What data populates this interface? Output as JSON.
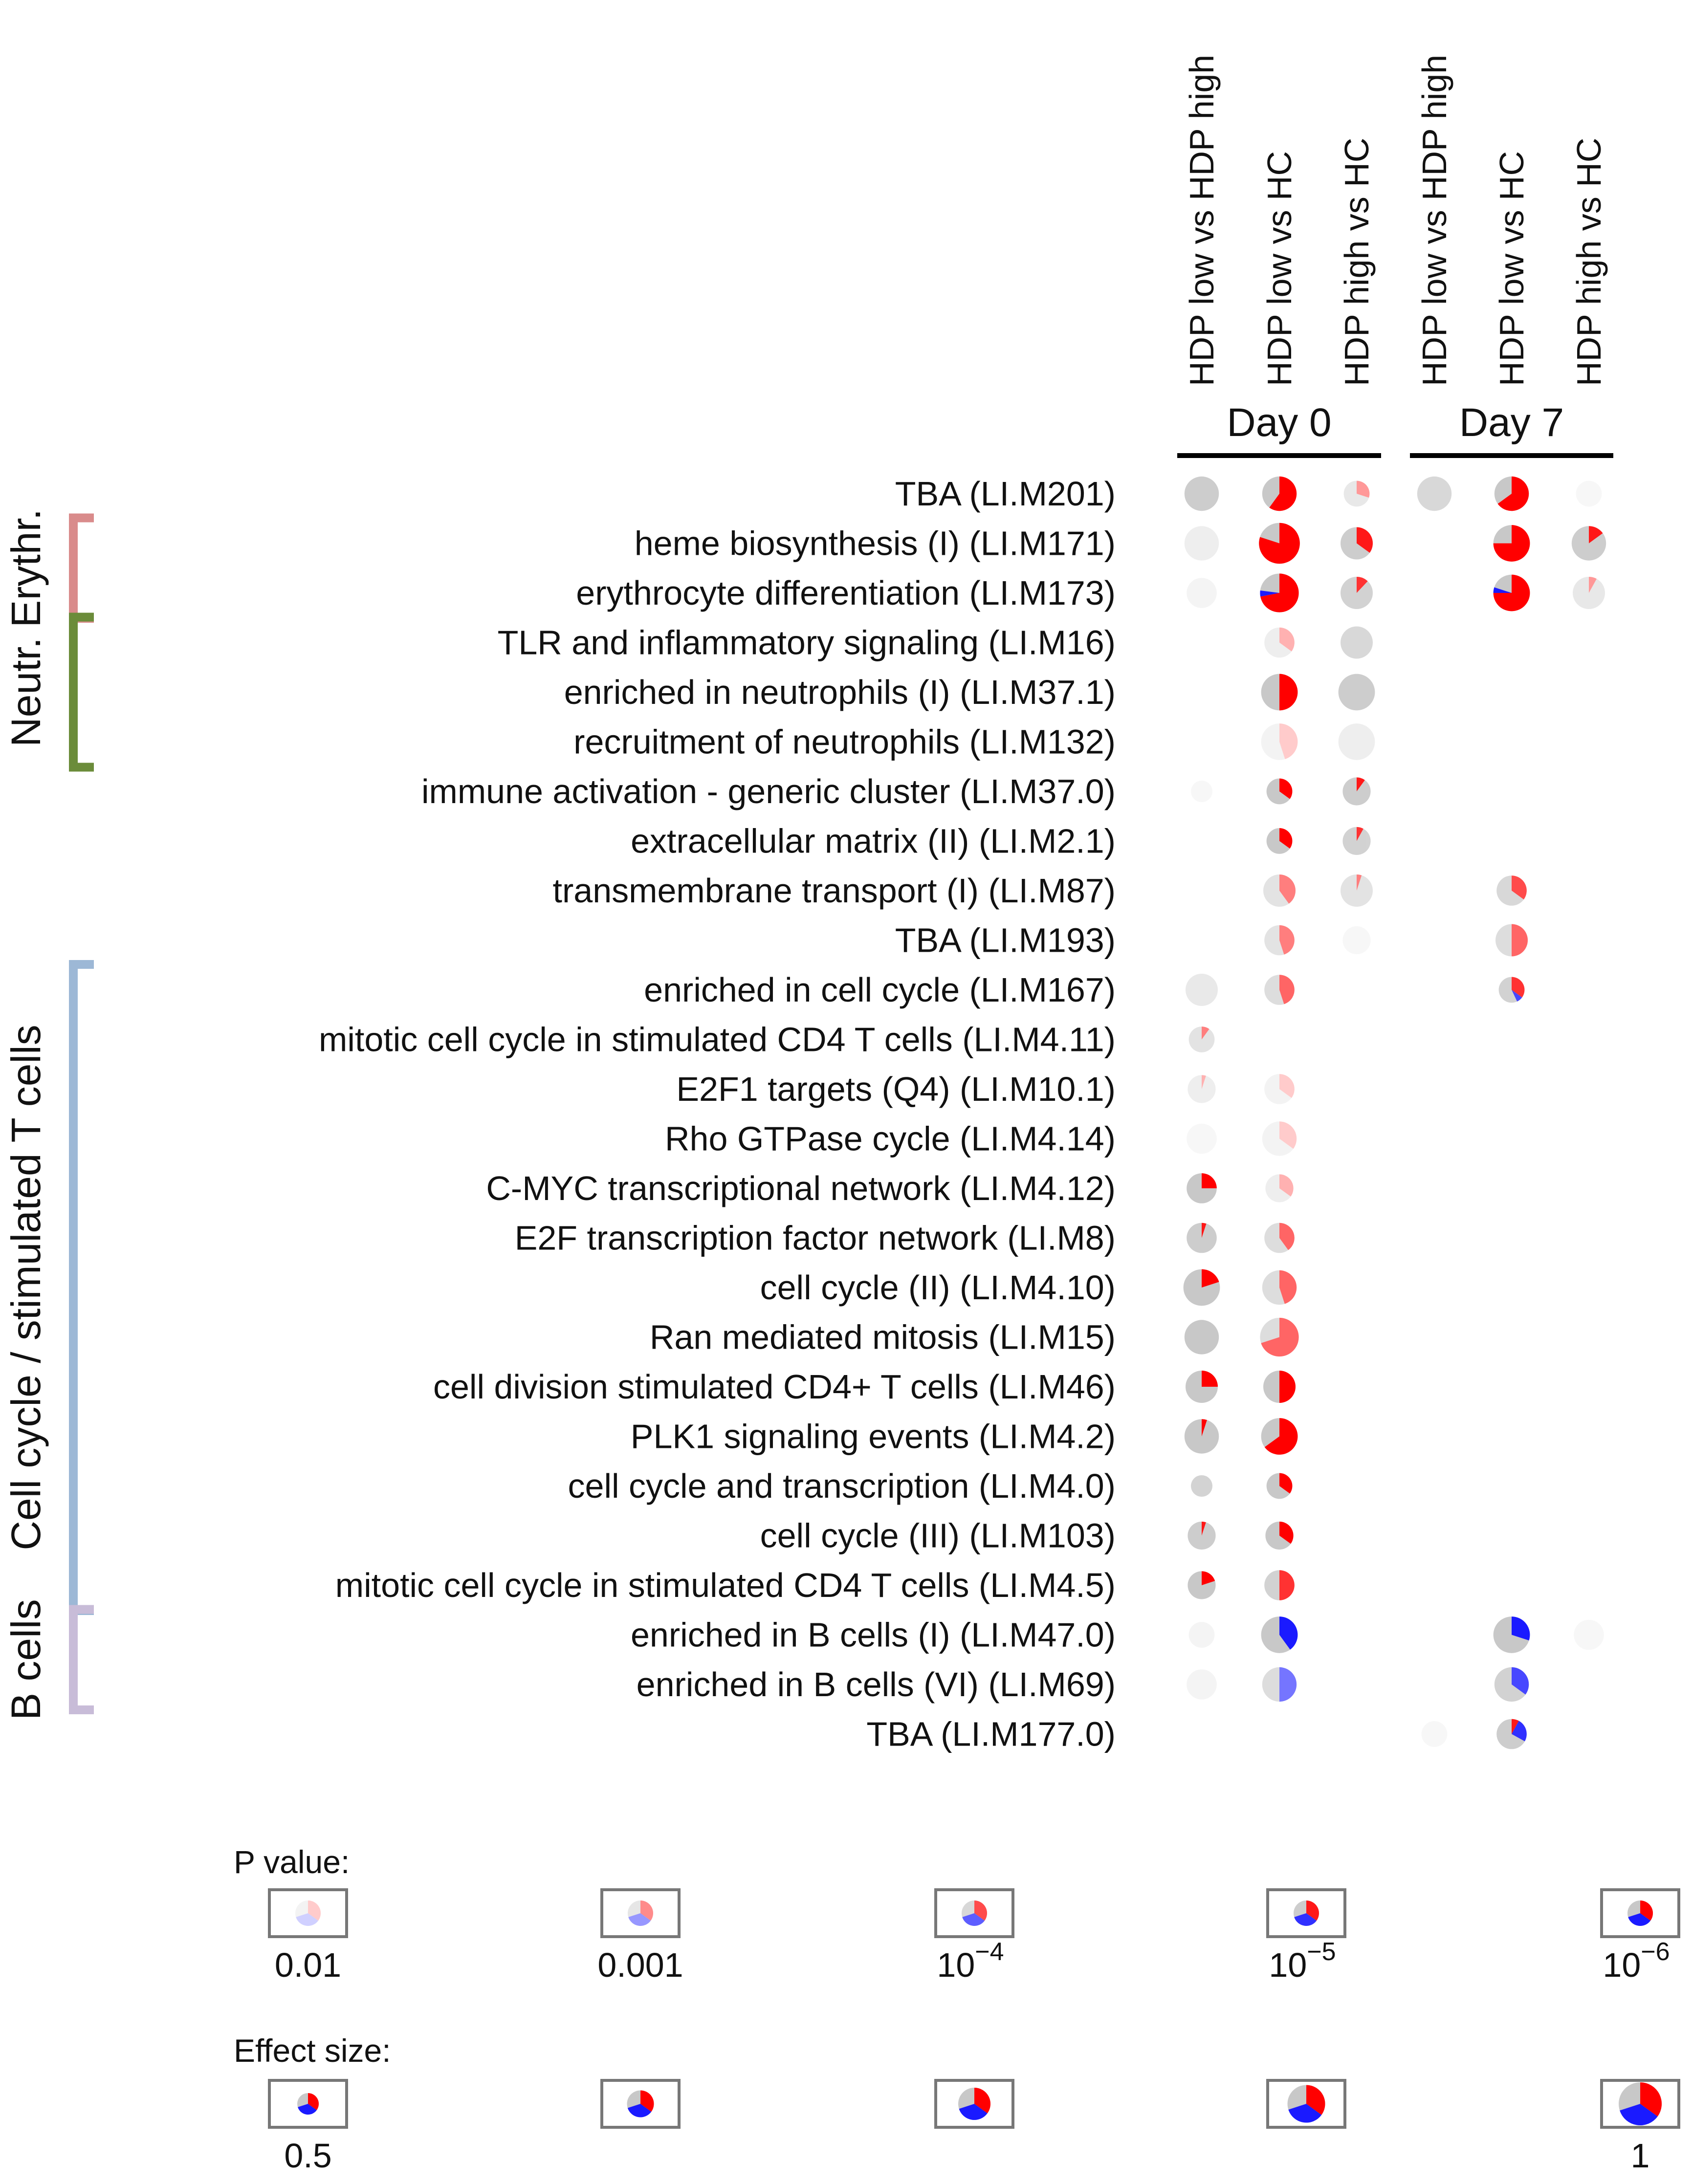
{
  "chart_data": {
    "type": "pie-matrix",
    "title": "",
    "encoding": {
      "pie_fill": "fraction of genes up (red) / down (blue) / unchanged (grey)",
      "pie_area": "effect size",
      "opacity": "P value (more opaque = smaller P)"
    },
    "colors": {
      "up": "#ff0000",
      "down": "#1a1aff",
      "neutral": "#c8c8c8"
    },
    "days": [
      {
        "label": "Day 0",
        "columns": [
          "HDP low vs HDP high",
          "HDP low vs HC",
          "HDP high vs HC"
        ]
      },
      {
        "label": "Day 7",
        "columns": [
          "HDP low vs HDP high",
          "HDP low vs HC",
          "HDP high vs HC"
        ]
      }
    ],
    "groups": [
      {
        "label": "Erythr.",
        "color": "#d98b8b",
        "rows": [
          1,
          2
        ]
      },
      {
        "label": "Neutr.",
        "color": "#6b8c3a",
        "rows": [
          3,
          5
        ]
      },
      {
        "label": "Cell cycle / stimulated T cells",
        "color": "#9db8d6",
        "rows": [
          10,
          22
        ]
      },
      {
        "label": "B cells",
        "color": "#c8bcd8",
        "rows": [
          23,
          24
        ]
      }
    ],
    "modules": [
      "TBA (LI.M201)",
      "heme biosynthesis (I) (LI.M171)",
      "erythrocyte differentiation (LI.M173)",
      "TLR and inflammatory signaling (LI.M16)",
      "enriched in neutrophils (I) (LI.M37.1)",
      "recruitment of neutrophils (LI.M132)",
      "immune activation - generic cluster (LI.M37.0)",
      "extracellular matrix (II) (LI.M2.1)",
      "transmembrane transport (I) (LI.M87)",
      "TBA (LI.M193)",
      "enriched in cell cycle (LI.M167)",
      "mitotic cell cycle in stimulated CD4 T cells (LI.M4.11)",
      "E2F1 targets (Q4) (LI.M10.1)",
      "Rho GTPase cycle (LI.M4.14)",
      "C-MYC transcriptional network (LI.M4.12)",
      "E2F transcription factor network (LI.M8)",
      "cell cycle (II) (LI.M4.10)",
      "Ran mediated mitosis (LI.M15)",
      "cell division stimulated CD4+ T cells (LI.M46)",
      "PLK1 signaling events (LI.M4.2)",
      "cell cycle and transcription (LI.M4.0)",
      "cell cycle (III) (LI.M103)",
      "mitotic cell cycle in stimulated CD4 T cells (LI.M4.5)",
      "enriched in B cells (I) (LI.M47.0)",
      "enriched in B cells (VI) (LI.M69)",
      "TBA (LI.M177.0)"
    ],
    "cells": [
      {
        "row": 0,
        "col": 0,
        "up": 0.0,
        "down": 0.0,
        "effect": 0.8,
        "alpha": 0.9
      },
      {
        "row": 0,
        "col": 1,
        "up": 0.6,
        "down": 0.0,
        "effect": 0.8,
        "alpha": 1.0
      },
      {
        "row": 0,
        "col": 2,
        "up": 0.3,
        "down": 0.0,
        "effect": 0.6,
        "alpha": 0.4
      },
      {
        "row": 0,
        "col": 3,
        "up": 0.0,
        "down": 0.0,
        "effect": 0.8,
        "alpha": 0.7
      },
      {
        "row": 0,
        "col": 4,
        "up": 0.65,
        "down": 0.0,
        "effect": 0.8,
        "alpha": 1.0
      },
      {
        "row": 0,
        "col": 5,
        "up": 0.0,
        "down": 0.0,
        "effect": 0.6,
        "alpha": 0.15
      },
      {
        "row": 1,
        "col": 0,
        "up": 0.0,
        "down": 0.0,
        "effect": 0.8,
        "alpha": 0.3
      },
      {
        "row": 1,
        "col": 1,
        "up": 0.8,
        "down": 0.0,
        "effect": 0.95,
        "alpha": 1.0
      },
      {
        "row": 1,
        "col": 2,
        "up": 0.35,
        "down": 0.0,
        "effect": 0.75,
        "alpha": 0.9
      },
      {
        "row": 1,
        "col": 4,
        "up": 0.75,
        "down": 0.0,
        "effect": 0.85,
        "alpha": 1.0
      },
      {
        "row": 1,
        "col": 5,
        "up": 0.15,
        "down": 0.0,
        "effect": 0.8,
        "alpha": 0.9
      },
      {
        "row": 2,
        "col": 0,
        "up": 0.0,
        "down": 0.0,
        "effect": 0.7,
        "alpha": 0.2
      },
      {
        "row": 2,
        "col": 1,
        "up": 0.72,
        "down": 0.05,
        "effect": 0.9,
        "alpha": 1.0
      },
      {
        "row": 2,
        "col": 2,
        "up": 0.12,
        "down": 0.0,
        "effect": 0.75,
        "alpha": 0.8
      },
      {
        "row": 2,
        "col": 4,
        "up": 0.75,
        "down": 0.05,
        "effect": 0.85,
        "alpha": 1.0
      },
      {
        "row": 2,
        "col": 5,
        "up": 0.08,
        "down": 0.0,
        "effect": 0.75,
        "alpha": 0.4
      },
      {
        "row": 3,
        "col": 1,
        "up": 0.35,
        "down": 0.0,
        "effect": 0.7,
        "alpha": 0.3
      },
      {
        "row": 3,
        "col": 2,
        "up": 0.0,
        "down": 0.0,
        "effect": 0.75,
        "alpha": 0.7
      },
      {
        "row": 4,
        "col": 1,
        "up": 0.5,
        "down": 0.0,
        "effect": 0.85,
        "alpha": 1.0
      },
      {
        "row": 4,
        "col": 2,
        "up": 0.0,
        "down": 0.0,
        "effect": 0.85,
        "alpha": 0.9
      },
      {
        "row": 5,
        "col": 1,
        "up": 0.45,
        "down": 0.0,
        "effect": 0.85,
        "alpha": 0.2
      },
      {
        "row": 5,
        "col": 2,
        "up": 0.0,
        "down": 0.0,
        "effect": 0.85,
        "alpha": 0.3
      },
      {
        "row": 6,
        "col": 0,
        "up": 0.0,
        "down": 0.0,
        "effect": 0.5,
        "alpha": 0.15
      },
      {
        "row": 6,
        "col": 1,
        "up": 0.35,
        "down": 0.0,
        "effect": 0.6,
        "alpha": 1.0
      },
      {
        "row": 6,
        "col": 2,
        "up": 0.1,
        "down": 0.0,
        "effect": 0.65,
        "alpha": 0.9
      },
      {
        "row": 7,
        "col": 1,
        "up": 0.35,
        "down": 0.0,
        "effect": 0.6,
        "alpha": 1.0
      },
      {
        "row": 7,
        "col": 2,
        "up": 0.08,
        "down": 0.0,
        "effect": 0.65,
        "alpha": 0.8
      },
      {
        "row": 8,
        "col": 1,
        "up": 0.4,
        "down": 0.0,
        "effect": 0.75,
        "alpha": 0.5
      },
      {
        "row": 8,
        "col": 2,
        "up": 0.05,
        "down": 0.0,
        "effect": 0.75,
        "alpha": 0.5
      },
      {
        "row": 8,
        "col": 4,
        "up": 0.35,
        "down": 0.0,
        "effect": 0.7,
        "alpha": 0.7
      },
      {
        "row": 9,
        "col": 1,
        "up": 0.45,
        "down": 0.0,
        "effect": 0.7,
        "alpha": 0.5
      },
      {
        "row": 9,
        "col": 2,
        "up": 0.0,
        "down": 0.0,
        "effect": 0.65,
        "alpha": 0.15
      },
      {
        "row": 9,
        "col": 4,
        "up": 0.5,
        "down": 0.0,
        "effect": 0.75,
        "alpha": 0.6
      },
      {
        "row": 10,
        "col": 0,
        "up": 0.0,
        "down": 0.0,
        "effect": 0.75,
        "alpha": 0.4
      },
      {
        "row": 10,
        "col": 1,
        "up": 0.45,
        "down": 0.0,
        "effect": 0.7,
        "alpha": 0.6
      },
      {
        "row": 10,
        "col": 4,
        "up": 0.35,
        "down": 0.08,
        "effect": 0.6,
        "alpha": 0.8
      },
      {
        "row": 11,
        "col": 0,
        "up": 0.1,
        "down": 0.0,
        "effect": 0.6,
        "alpha": 0.5
      },
      {
        "row": 12,
        "col": 0,
        "up": 0.05,
        "down": 0.0,
        "effect": 0.65,
        "alpha": 0.3
      },
      {
        "row": 12,
        "col": 1,
        "up": 0.35,
        "down": 0.0,
        "effect": 0.7,
        "alpha": 0.2
      },
      {
        "row": 13,
        "col": 0,
        "up": 0.0,
        "down": 0.0,
        "effect": 0.7,
        "alpha": 0.15
      },
      {
        "row": 13,
        "col": 1,
        "up": 0.35,
        "down": 0.0,
        "effect": 0.8,
        "alpha": 0.2
      },
      {
        "row": 14,
        "col": 0,
        "up": 0.25,
        "down": 0.0,
        "effect": 0.7,
        "alpha": 1.0
      },
      {
        "row": 14,
        "col": 1,
        "up": 0.35,
        "down": 0.0,
        "effect": 0.65,
        "alpha": 0.3
      },
      {
        "row": 15,
        "col": 0,
        "up": 0.05,
        "down": 0.0,
        "effect": 0.7,
        "alpha": 0.9
      },
      {
        "row": 15,
        "col": 1,
        "up": 0.4,
        "down": 0.0,
        "effect": 0.7,
        "alpha": 0.6
      },
      {
        "row": 16,
        "col": 0,
        "up": 0.2,
        "down": 0.0,
        "effect": 0.85,
        "alpha": 1.0
      },
      {
        "row": 16,
        "col": 1,
        "up": 0.45,
        "down": 0.0,
        "effect": 0.8,
        "alpha": 0.6
      },
      {
        "row": 17,
        "col": 0,
        "up": 0.0,
        "down": 0.0,
        "effect": 0.8,
        "alpha": 1.0
      },
      {
        "row": 17,
        "col": 1,
        "up": 0.7,
        "down": 0.0,
        "effect": 0.9,
        "alpha": 0.6
      },
      {
        "row": 18,
        "col": 0,
        "up": 0.25,
        "down": 0.0,
        "effect": 0.75,
        "alpha": 1.0
      },
      {
        "row": 18,
        "col": 1,
        "up": 0.5,
        "down": 0.0,
        "effect": 0.75,
        "alpha": 1.0
      },
      {
        "row": 19,
        "col": 0,
        "up": 0.05,
        "down": 0.0,
        "effect": 0.8,
        "alpha": 1.0
      },
      {
        "row": 19,
        "col": 1,
        "up": 0.65,
        "down": 0.0,
        "effect": 0.85,
        "alpha": 1.0
      },
      {
        "row": 20,
        "col": 0,
        "up": 0.0,
        "down": 0.0,
        "effect": 0.5,
        "alpha": 0.8
      },
      {
        "row": 20,
        "col": 1,
        "up": 0.35,
        "down": 0.0,
        "effect": 0.6,
        "alpha": 1.0
      },
      {
        "row": 21,
        "col": 0,
        "up": 0.05,
        "down": 0.0,
        "effect": 0.65,
        "alpha": 0.9
      },
      {
        "row": 21,
        "col": 1,
        "up": 0.35,
        "down": 0.0,
        "effect": 0.65,
        "alpha": 1.0
      },
      {
        "row": 22,
        "col": 0,
        "up": 0.2,
        "down": 0.0,
        "effect": 0.65,
        "alpha": 1.0
      },
      {
        "row": 22,
        "col": 1,
        "up": 0.5,
        "down": 0.0,
        "effect": 0.7,
        "alpha": 0.8
      },
      {
        "row": 23,
        "col": 0,
        "up": 0.0,
        "down": 0.0,
        "effect": 0.6,
        "alpha": 0.2
      },
      {
        "row": 23,
        "col": 1,
        "up": 0.0,
        "down": 0.4,
        "effect": 0.85,
        "alpha": 1.0
      },
      {
        "row": 23,
        "col": 4,
        "up": 0.0,
        "down": 0.3,
        "effect": 0.85,
        "alpha": 1.0
      },
      {
        "row": 23,
        "col": 5,
        "up": 0.0,
        "down": 0.0,
        "effect": 0.7,
        "alpha": 0.15
      },
      {
        "row": 24,
        "col": 0,
        "up": 0.0,
        "down": 0.0,
        "effect": 0.7,
        "alpha": 0.2
      },
      {
        "row": 24,
        "col": 1,
        "up": 0.0,
        "down": 0.5,
        "effect": 0.8,
        "alpha": 0.6
      },
      {
        "row": 24,
        "col": 4,
        "up": 0.0,
        "down": 0.35,
        "effect": 0.8,
        "alpha": 0.8
      },
      {
        "row": 25,
        "col": 3,
        "up": 0.0,
        "down": 0.0,
        "effect": 0.6,
        "alpha": 0.15
      },
      {
        "row": 25,
        "col": 4,
        "up": 0.08,
        "down": 0.25,
        "effect": 0.7,
        "alpha": 0.9
      }
    ],
    "legend": {
      "p_value": {
        "title": "P value:",
        "items": [
          {
            "label": "0.01",
            "alpha": 0.2
          },
          {
            "label": "0.001",
            "alpha": 0.45
          },
          {
            "base": "10",
            "exp": "−4",
            "alpha": 0.7
          },
          {
            "base": "10",
            "exp": "−5",
            "alpha": 0.9
          },
          {
            "base": "10",
            "exp": "−6",
            "alpha": 1.0
          }
        ]
      },
      "effect_size": {
        "title": "Effect size:",
        "items": [
          {
            "label": "0.5",
            "effect": 0.5
          },
          {
            "label": "",
            "effect": 0.625
          },
          {
            "label": "",
            "effect": 0.75
          },
          {
            "label": "",
            "effect": 0.875
          },
          {
            "label": "1",
            "effect": 1.0
          }
        ]
      }
    }
  }
}
